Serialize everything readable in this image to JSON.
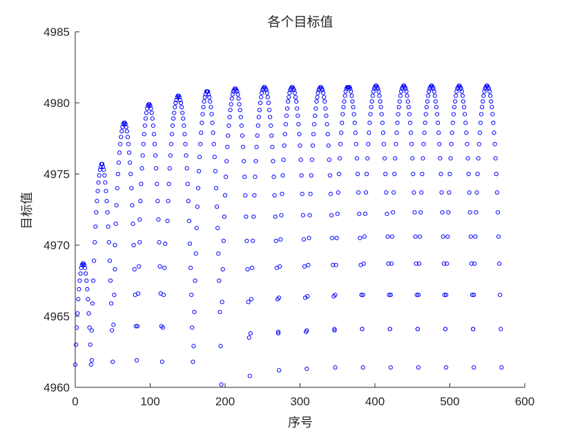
{
  "chart_data": {
    "type": "scatter",
    "title": "各个目标值",
    "xlabel": "序号",
    "ylabel": "目标值",
    "xlim": [
      0,
      600
    ],
    "ylim": [
      4960,
      4985
    ],
    "xticks": [
      0,
      100,
      200,
      300,
      400,
      500,
      600
    ],
    "yticks": [
      4960,
      4965,
      4970,
      4975,
      4980,
      4985
    ],
    "grid": false,
    "marker": "circle",
    "marker_color": "#0000ff",
    "series": [
      {
        "groups": [
          {
            "start": 0,
            "values": [
              4961.6,
              4963.0,
              4964.2,
              4965.2,
              4966.2,
              4966.9,
              4967.5,
              4968.0,
              4968.4,
              4968.6,
              4968.7,
              4968.7,
              4968.6,
              4968.4,
              4968.0,
              4967.5,
              4966.9,
              4966.2,
              4965.2,
              4964.2,
              4963.0,
              4961.6,
              4961.9
            ]
          },
          {
            "start": 22,
            "values": [
              4964.0,
              4965.9,
              4967.5,
              4968.9,
              4970.2,
              4971.3,
              4972.3,
              4973.1,
              4973.8,
              4974.4,
              4974.9,
              4975.3,
              4975.5,
              4975.7,
              4975.7,
              4975.5,
              4975.3,
              4974.9,
              4974.4,
              4973.8,
              4973.1,
              4972.3,
              4971.3,
              4970.2,
              4968.9,
              4967.5,
              4965.9,
              4964.0,
              4961.8,
              4964.4,
              4966.5,
              4968.3
            ]
          },
          {
            "start": 53,
            "values": [
              4970.0,
              4971.5,
              4972.8,
              4974.0,
              4975.0,
              4975.8,
              4976.5,
              4977.1,
              4977.6,
              4978.0,
              4978.3,
              4978.5,
              4978.6,
              4978.6,
              4978.5,
              4978.3,
              4978.0,
              4977.6,
              4977.1,
              4976.5,
              4975.8,
              4975.0,
              4974.0,
              4972.8,
              4971.5,
              4970.0,
              4968.3,
              4966.5,
              4964.3,
              4961.9,
              4964.3,
              4966.6,
              4968.5,
              4970.2
            ]
          },
          {
            "start": 86,
            "values": [
              4971.8,
              4973.1,
              4974.3,
              4975.4,
              4976.3,
              4977.1,
              4977.8,
              4978.4,
              4978.9,
              4979.3,
              4979.6,
              4979.8,
              4979.9,
              4979.9,
              4979.8,
              4979.6,
              4979.3,
              4978.9,
              4978.4,
              4977.8,
              4977.1,
              4976.3,
              4975.4,
              4974.3,
              4973.1,
              4971.8,
              4970.2,
              4968.5,
              4966.6,
              4964.3,
              4961.8,
              4964.2,
              4966.5,
              4968.4,
              4970.1
            ]
          },
          {
            "start": 123,
            "values": [
              4971.7,
              4973.1,
              4974.3,
              4975.4,
              4976.3,
              4977.1,
              4977.8,
              4978.4,
              4978.9,
              4979.3,
              4979.7,
              4980.0,
              4980.2,
              4980.4,
              4980.5,
              4980.5,
              4980.4,
              4980.2,
              4980.0,
              4979.7,
              4979.3,
              4978.9,
              4978.4,
              4977.8,
              4977.1,
              4976.3,
              4975.4,
              4974.3,
              4973.1,
              4971.7,
              4970.1,
              4968.4,
              4966.5,
              4964.2,
              4961.8
            ]
          },
          {
            "start": 158,
            "values": [
              4962.9,
              4965.3,
              4967.5,
              4969.4,
              4971.2,
              4972.7,
              4974.0,
              4975.2,
              4976.2,
              4977.1,
              4977.9,
              4978.6,
              4979.2,
              4979.7,
              4980.1,
              4980.4,
              4980.6,
              4980.8,
              4980.8,
              4980.8,
              4980.6,
              4980.4,
              4980.1,
              4979.7,
              4979.2,
              4978.6,
              4977.9,
              4977.1,
              4976.2,
              4975.2,
              4974.0,
              4972.7,
              4971.2,
              4969.4,
              4967.5,
              4965.3,
              4962.9,
              4960.2
            ]
          },
          {
            "start": 196,
            "values": [
              4966.0,
              4968.3,
              4970.3,
              4972.0,
              4973.5,
              4974.8,
              4975.9,
              4976.9,
              4977.7,
              4978.4,
              4979.0,
              4979.5,
              4979.9,
              4980.3,
              4980.6,
              4980.8,
              4980.9,
              4981.0,
              4981.0,
              4980.9,
              4980.8,
              4980.6,
              4980.3,
              4979.9,
              4979.5,
              4979.0,
              4978.4,
              4977.7,
              4976.9,
              4975.9,
              4974.8,
              4973.5,
              4972.0,
              4970.3,
              4968.3,
              4966.0,
              4963.5,
              4960.8
            ]
          },
          {
            "start": 234,
            "values": [
              4963.8,
              4966.2,
              4968.4,
              4970.3,
              4972.0,
              4973.5,
              4974.8,
              4975.9,
              4976.9,
              4977.7,
              4978.4,
              4979.0,
              4979.5,
              4980.0,
              4980.4,
              4980.7,
              4980.9,
              4981.0,
              4981.1,
              4981.1,
              4981.0,
              4980.9,
              4980.7,
              4980.4,
              4980.0,
              4979.5,
              4979.0,
              4978.4,
              4977.7,
              4976.9,
              4975.9,
              4974.8,
              4973.5,
              4972.0,
              4970.3,
              4968.4,
              4966.2,
              4963.8,
              4961.2
            ]
          },
          {
            "start": 271,
            "values": [
              4963.9,
              4966.3,
              4968.5,
              4970.4,
              4972.1,
              4973.6,
              4974.9,
              4976.0,
              4977.0,
              4977.8,
              4978.5,
              4979.1,
              4979.6,
              4980.1,
              4980.4,
              4980.7,
              4980.9,
              4981.0,
              4981.1,
              4981.1,
              4981.0,
              4980.9,
              4980.7,
              4980.4,
              4980.1,
              4979.6,
              4979.1,
              4978.5,
              4977.8,
              4977.0,
              4976.0,
              4974.9,
              4973.6,
              4972.1,
              4970.4,
              4968.5,
              4966.3,
              4963.9,
              4961.3
            ]
          },
          {
            "start": 309,
            "values": [
              4964.0,
              4966.4,
              4968.6,
              4970.5,
              4972.1,
              4973.6,
              4974.9,
              4976.0,
              4977.0,
              4977.8,
              4978.5,
              4979.1,
              4979.6,
              4980.1,
              4980.4,
              4980.7,
              4980.9,
              4981.0,
              4981.1,
              4981.1,
              4981.0,
              4980.9,
              4980.7,
              4980.4,
              4980.1,
              4979.6,
              4979.1,
              4978.5,
              4977.8,
              4977.0,
              4976.0,
              4974.9,
              4973.6,
              4972.1,
              4970.5,
              4968.6,
              4966.4,
              4964.0,
              4961.4
            ]
          },
          {
            "start": 346,
            "values": [
              4964.1,
              4966.5,
              4968.6,
              4970.5,
              4972.2,
              4973.7,
              4975.0,
              4976.1,
              4977.1,
              4977.9,
              4978.6,
              4979.2,
              4979.7,
              4980.1,
              4980.5,
              4980.8,
              4981.0,
              4981.1,
              4981.1,
              4981.1,
              4981.1,
              4981.0,
              4980.8,
              4980.5,
              4980.1,
              4979.7,
              4979.2,
              4978.6,
              4977.9,
              4977.1,
              4976.1,
              4975.0,
              4973.7,
              4972.2,
              4970.5,
              4968.6,
              4966.5,
              4964.1,
              4961.4
            ]
          },
          {
            "start": 383,
            "values": [
              4964.1,
              4966.5,
              4968.7,
              4970.6,
              4972.2,
              4973.7,
              4975.0,
              4976.1,
              4977.1,
              4977.9,
              4978.6,
              4979.2,
              4979.7,
              4980.1,
              4980.5,
              4980.8,
              4981.0,
              4981.1,
              4981.2,
              4981.2,
              4981.1,
              4981.0,
              4980.8,
              4980.5,
              4980.1,
              4979.7,
              4979.2,
              4978.6,
              4977.9,
              4977.1,
              4976.1,
              4975.0,
              4973.7,
              4972.2,
              4970.6,
              4968.7,
              4966.5,
              4964.1,
              4961.4
            ]
          },
          {
            "start": 420,
            "values": [
              4964.1,
              4966.5,
              4968.7,
              4970.6,
              4972.3,
              4973.7,
              4975.0,
              4976.1,
              4977.1,
              4977.9,
              4978.6,
              4979.2,
              4979.7,
              4980.1,
              4980.5,
              4980.8,
              4981.0,
              4981.1,
              4981.2,
              4981.2,
              4981.1,
              4981.0,
              4980.8,
              4980.5,
              4980.1,
              4979.7,
              4979.2,
              4978.6,
              4977.9,
              4977.1,
              4976.1,
              4975.0,
              4973.7,
              4972.3,
              4970.6,
              4968.7,
              4966.5,
              4964.1,
              4961.4
            ]
          },
          {
            "start": 457,
            "values": [
              4964.1,
              4966.5,
              4968.7,
              4970.6,
              4972.3,
              4973.7,
              4975.0,
              4976.1,
              4977.1,
              4977.9,
              4978.6,
              4979.2,
              4979.7,
              4980.1,
              4980.5,
              4980.8,
              4981.0,
              4981.1,
              4981.2,
              4981.2,
              4981.1,
              4981.0,
              4980.8,
              4980.5,
              4980.1,
              4979.7,
              4979.2,
              4978.6,
              4977.9,
              4977.1,
              4976.1,
              4975.0,
              4973.7,
              4972.3,
              4970.6,
              4968.7,
              4966.5,
              4964.1,
              4961.4
            ]
          },
          {
            "start": 494,
            "values": [
              4964.1,
              4966.5,
              4968.7,
              4970.6,
              4972.3,
              4973.7,
              4975.0,
              4976.1,
              4977.1,
              4977.9,
              4978.6,
              4979.2,
              4979.7,
              4980.1,
              4980.5,
              4980.8,
              4981.0,
              4981.1,
              4981.2,
              4981.2,
              4981.1,
              4981.0,
              4980.8,
              4980.5,
              4980.1,
              4979.7,
              4979.2,
              4978.6,
              4977.9,
              4977.1,
              4976.1,
              4975.0,
              4973.7,
              4972.3,
              4970.6,
              4968.7,
              4966.5,
              4964.1,
              4961.4
            ]
          },
          {
            "start": 531,
            "values": [
              4964.1,
              4966.5,
              4968.7,
              4970.6,
              4972.3,
              4973.7,
              4975.0,
              4976.1,
              4977.1,
              4977.9,
              4978.6,
              4979.2,
              4979.7,
              4980.1,
              4980.5,
              4980.8,
              4981.0,
              4981.1,
              4981.2,
              4981.2,
              4981.1,
              4981.0,
              4980.8,
              4980.5,
              4980.1,
              4979.7,
              4979.2,
              4978.6,
              4977.9,
              4977.1,
              4976.1,
              4975.0,
              4973.7,
              4972.3,
              4970.6,
              4968.7,
              4966.5,
              4964.1,
              4961.4
            ]
          }
        ]
      }
    ]
  }
}
